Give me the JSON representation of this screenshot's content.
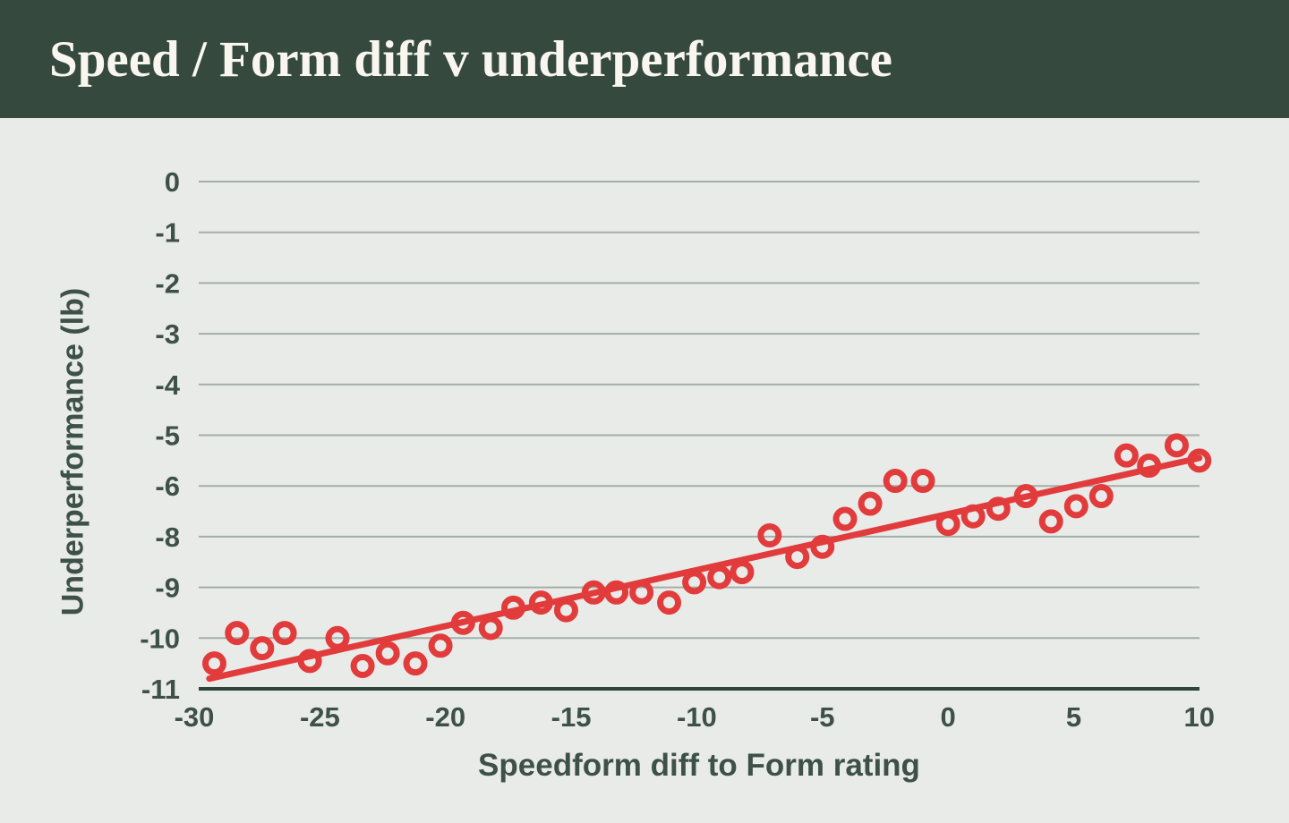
{
  "header": {
    "title": "Speed / Form diff v underperformance"
  },
  "colors": {
    "header_bg": "#35493e",
    "header_text": "#f9f6ef",
    "page_bg": "#e9ebe8",
    "gridline": "#a4aea8",
    "axis_line": "#2f443a",
    "axis_text": "#3d5148",
    "point_red": "#e23b3c"
  },
  "chart_data": {
    "type": "scatter",
    "title": "Speed / Form diff v underperformance",
    "xlabel": "Speedform diff to Form rating",
    "ylabel": "Underperformance (lb)",
    "x_tick_labels": [
      "-30",
      "-25",
      "-20",
      "-15",
      "-10",
      "-5",
      "0",
      "5",
      "10"
    ],
    "y_tick_labels": [
      "0",
      "-1",
      "-2",
      "-3",
      "-4",
      "-5",
      "-6",
      "-8",
      "-9",
      "-10",
      "-11"
    ],
    "xlim": [
      -30,
      10
    ],
    "grid": true,
    "legend": false,
    "y_axis_note": "gridlines evenly spaced; tick label -7 is skipped between -6 and -8",
    "points": [
      [
        -29.2,
        -10.5
      ],
      [
        -28.3,
        -9.9
      ],
      [
        -27.3,
        -10.2
      ],
      [
        -26.4,
        -9.9
      ],
      [
        -25.4,
        -10.45
      ],
      [
        -24.3,
        -10.0
      ],
      [
        -23.3,
        -10.55
      ],
      [
        -22.3,
        -10.3
      ],
      [
        -21.2,
        -10.5
      ],
      [
        -20.2,
        -10.15
      ],
      [
        -19.3,
        -9.7
      ],
      [
        -18.2,
        -9.8
      ],
      [
        -17.3,
        -9.4
      ],
      [
        -16.2,
        -9.3
      ],
      [
        -15.2,
        -9.45
      ],
      [
        -14.1,
        -9.1
      ],
      [
        -13.2,
        -9.1
      ],
      [
        -12.2,
        -9.1
      ],
      [
        -11.1,
        -9.3
      ],
      [
        -10.1,
        -8.9
      ],
      [
        -9.1,
        -8.8
      ],
      [
        -8.2,
        -8.7
      ],
      [
        -7.1,
        -7.95
      ],
      [
        -6.0,
        -8.4
      ],
      [
        -5.0,
        -8.2
      ],
      [
        -4.1,
        -7.3
      ],
      [
        -3.1,
        -6.7
      ],
      [
        -2.1,
        -5.9
      ],
      [
        -1.0,
        -5.9
      ],
      [
        0.0,
        -7.5
      ],
      [
        1.0,
        -7.2
      ],
      [
        2.0,
        -6.9
      ],
      [
        3.1,
        -6.4
      ],
      [
        4.1,
        -7.4
      ],
      [
        5.1,
        -6.8
      ],
      [
        6.1,
        -6.4
      ],
      [
        7.1,
        -5.4
      ],
      [
        8.0,
        -5.6
      ],
      [
        9.1,
        -5.2
      ],
      [
        10.0,
        -5.5
      ]
    ],
    "trendline": {
      "x1": -29.4,
      "y1": -10.8,
      "x2": 10.0,
      "y2": -5.45
    }
  }
}
